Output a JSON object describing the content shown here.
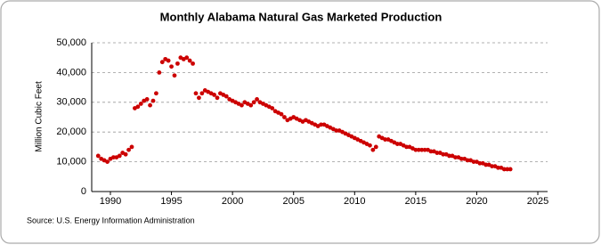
{
  "chart_data": {
    "type": "scatter",
    "title": "Monthly Alabama Natural Gas Marketed Production",
    "ylabel": "Million Cubic Feet",
    "source": "Source: U.S. Energy Information Administration",
    "color": "#cc0000",
    "grid": true,
    "xlim": [
      1988.47,
      2025.8
    ],
    "ylim": [
      0,
      50000
    ],
    "xticks": [
      1990,
      1995,
      2000,
      2005,
      2010,
      2015,
      2020,
      2025
    ],
    "yticks": [
      0,
      {
        "value": 10000,
        "label": "10,000"
      },
      {
        "value": 20000,
        "label": "20,000"
      },
      {
        "value": 30000,
        "label": "30,000"
      },
      {
        "value": 40000,
        "label": "40,000"
      },
      {
        "value": 50000,
        "label": "50,000"
      }
    ],
    "x": [
      1989.0,
      1989.25,
      1989.5,
      1989.75,
      1990.0,
      1990.25,
      1990.5,
      1990.75,
      1991.0,
      1991.25,
      1991.5,
      1991.75,
      1992.0,
      1992.25,
      1992.5,
      1992.75,
      1993.0,
      1993.25,
      1993.5,
      1993.75,
      1994.0,
      1994.25,
      1994.5,
      1994.75,
      1995.0,
      1995.25,
      1995.5,
      1995.75,
      1996.0,
      1996.25,
      1996.5,
      1996.75,
      1997.0,
      1997.25,
      1997.5,
      1997.75,
      1998.0,
      1998.25,
      1998.5,
      1998.75,
      1999.0,
      1999.25,
      1999.5,
      1999.75,
      2000.0,
      2000.25,
      2000.5,
      2000.75,
      2001.0,
      2001.25,
      2001.5,
      2001.75,
      2002.0,
      2002.25,
      2002.5,
      2002.75,
      2003.0,
      2003.25,
      2003.5,
      2003.75,
      2004.0,
      2004.25,
      2004.5,
      2004.75,
      2005.0,
      2005.25,
      2005.5,
      2005.75,
      2006.0,
      2006.25,
      2006.5,
      2006.75,
      2007.0,
      2007.25,
      2007.5,
      2007.75,
      2008.0,
      2008.25,
      2008.5,
      2008.75,
      2009.0,
      2009.25,
      2009.5,
      2009.75,
      2010.0,
      2010.25,
      2010.5,
      2010.75,
      2011.0,
      2011.25,
      2011.5,
      2011.75,
      2012.0,
      2012.25,
      2012.5,
      2012.75,
      2013.0,
      2013.25,
      2013.5,
      2013.75,
      2014.0,
      2014.25,
      2014.5,
      2014.75,
      2015.0,
      2015.25,
      2015.5,
      2015.75,
      2016.0,
      2016.25,
      2016.5,
      2016.75,
      2017.0,
      2017.25,
      2017.5,
      2017.75,
      2018.0,
      2018.25,
      2018.5,
      2018.75,
      2019.0,
      2019.25,
      2019.5,
      2019.75,
      2020.0,
      2020.25,
      2020.5,
      2020.75,
      2021.0,
      2021.25,
      2021.5,
      2021.75,
      2022.0,
      2022.25,
      2022.5,
      2022.75
    ],
    "values": [
      12000,
      11000,
      10500,
      10000,
      11000,
      11500,
      11500,
      12000,
      13000,
      12500,
      14000,
      15000,
      28000,
      28500,
      29500,
      30500,
      31000,
      29000,
      30500,
      33000,
      40000,
      43500,
      44500,
      44000,
      42000,
      39000,
      43000,
      45000,
      44500,
      45000,
      44000,
      43000,
      33000,
      31500,
      33000,
      34000,
      33500,
      33000,
      32500,
      31500,
      33000,
      32500,
      32000,
      31000,
      30500,
      30000,
      29500,
      29000,
      30000,
      29500,
      29000,
      30000,
      31000,
      30000,
      29500,
      29000,
      28500,
      28000,
      27000,
      26500,
      26000,
      25000,
      24000,
      24500,
      25000,
      24500,
      24000,
      23500,
      24000,
      23500,
      23000,
      22500,
      22000,
      22500,
      22500,
      22000,
      21500,
      21000,
      20500,
      20500,
      20000,
      19500,
      19000,
      18500,
      18000,
      17500,
      17000,
      16500,
      16000,
      15500,
      14000,
      15000,
      18500,
      18000,
      17500,
      17500,
      17000,
      16500,
      16000,
      16000,
      15500,
      15000,
      15000,
      14500,
      14000,
      14000,
      14000,
      14000,
      14000,
      13500,
      13500,
      13000,
      13000,
      12500,
      12500,
      12000,
      12000,
      11500,
      11500,
      11000,
      11000,
      10500,
      10500,
      10000,
      10000,
      9500,
      9500,
      9000,
      9000,
      8500,
      8500,
      8000,
      8000,
      7500,
      7500,
      7500
    ]
  }
}
